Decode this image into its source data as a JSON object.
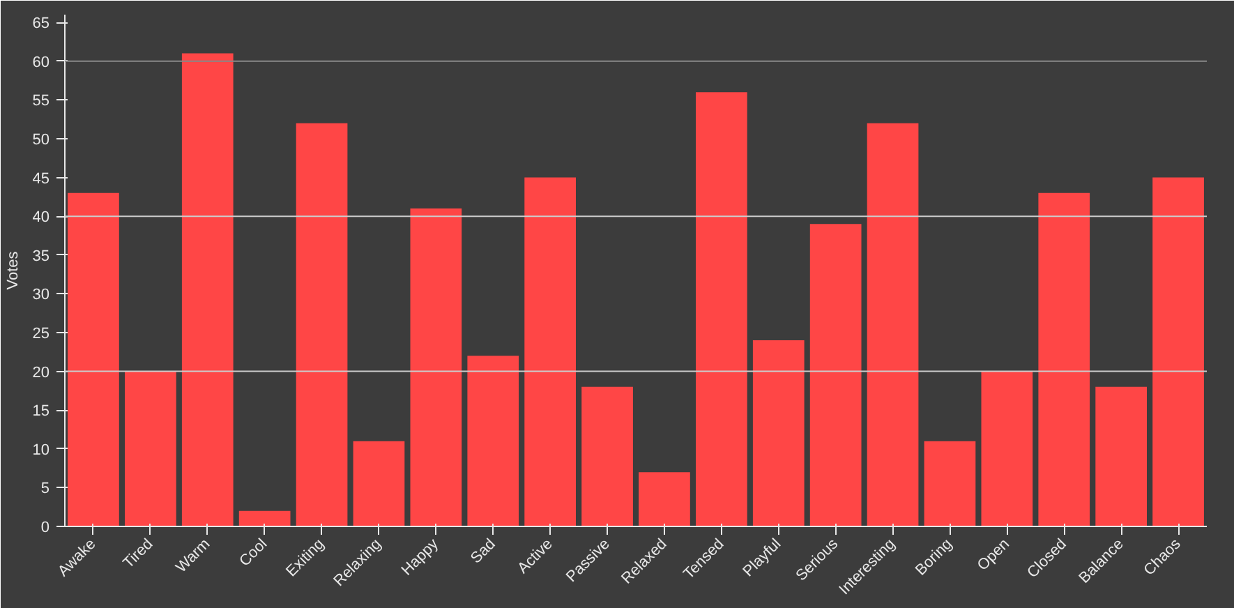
{
  "chart_data": {
    "type": "bar",
    "ylabel": "Votes",
    "categories": [
      "Awake",
      "Tired",
      "Warm",
      "Cool",
      "Exiting",
      "Relaxing",
      "Happy",
      "Sad",
      "Active",
      "Passive",
      "Relaxed",
      "Tensed",
      "Playful",
      "Serious",
      "Interesting",
      "Boring",
      "Open",
      "Closed",
      "Balance",
      "Chaos"
    ],
    "values": [
      43,
      20,
      61,
      2,
      52,
      11,
      41,
      22,
      45,
      18,
      7,
      56,
      24,
      39,
      52,
      11,
      20,
      43,
      18,
      45
    ],
    "color": "#ff4646",
    "ylim": [
      0,
      66
    ],
    "yticks": [
      0,
      5,
      10,
      15,
      20,
      25,
      30,
      35,
      40,
      45,
      50,
      55,
      60,
      65
    ],
    "grid": false,
    "ref_lines": [
      {
        "axis": "y",
        "value": 20,
        "color": "#cccccc"
      },
      {
        "axis": "y",
        "value": 40,
        "color": "#cccccc"
      },
      {
        "axis": "y",
        "value": 60,
        "color": "#888888"
      }
    ]
  }
}
